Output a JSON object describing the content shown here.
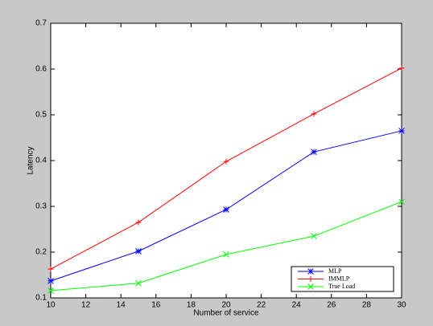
{
  "chart_data": {
    "type": "line",
    "xlabel": "Number of service",
    "ylabel": "Latency",
    "x": [
      10,
      15,
      20,
      25,
      30
    ],
    "series": [
      {
        "name": "MLP",
        "color": "#0000ff",
        "marker": "asterisk",
        "values": [
          0.137,
          0.202,
          0.293,
          0.419,
          0.465
        ]
      },
      {
        "name": "IMMLP",
        "color": "#ff0000",
        "marker": "plus",
        "values": [
          0.163,
          0.265,
          0.398,
          0.502,
          0.602
        ]
      },
      {
        "name": "True Load",
        "color": "#00ff00",
        "marker": "cross",
        "values": [
          0.116,
          0.132,
          0.195,
          0.235,
          0.31
        ]
      }
    ],
    "xlim": [
      10,
      30
    ],
    "xticks": [
      10,
      12,
      14,
      16,
      18,
      20,
      22,
      24,
      26,
      28,
      30
    ],
    "ylim": [
      0.1,
      0.7
    ],
    "yticks": [
      0.1,
      0.2,
      0.3,
      0.4,
      0.5,
      0.6,
      0.7
    ],
    "legend": "lower right"
  }
}
